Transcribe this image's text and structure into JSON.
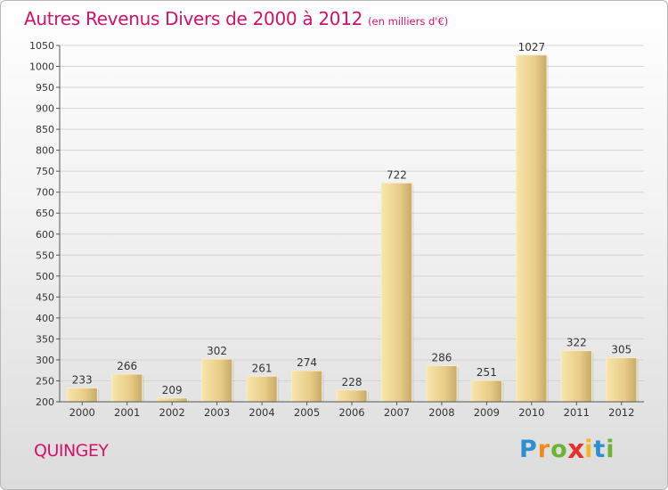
{
  "title": "Autres Revenus Divers de 2000 à 2012",
  "subtitle": "(en milliers d'€)",
  "commune": "QUINGEY",
  "logo": {
    "letters": [
      "P",
      "r",
      "o",
      "x",
      "i",
      "t",
      "i"
    ],
    "colors": [
      "#2e8fd0",
      "#f08a1c",
      "#6cb434",
      "#e4322b",
      "#f4b81e",
      "#2e8fd0",
      "#6cb434"
    ]
  },
  "colors": {
    "title": "#d2116b",
    "bar_light": "#f6e0a0",
    "bar_dark": "#c9ad6a",
    "grid": "#d3d3d3",
    "text": "#333333"
  },
  "chart_data": {
    "type": "bar",
    "title": "Autres Revenus Divers de 2000 à 2012",
    "subtitle": "(en milliers d'€)",
    "categories": [
      "2000",
      "2001",
      "2002",
      "2003",
      "2004",
      "2005",
      "2006",
      "2007",
      "2008",
      "2009",
      "2010",
      "2011",
      "2012"
    ],
    "values": [
      233,
      266,
      209,
      302,
      261,
      274,
      228,
      722,
      286,
      251,
      1027,
      322,
      305
    ],
    "ylim": [
      200,
      1050
    ],
    "yticks": [
      200,
      250,
      300,
      350,
      400,
      450,
      500,
      550,
      600,
      650,
      700,
      750,
      800,
      850,
      900,
      950,
      1000,
      1050
    ],
    "grid": true
  }
}
